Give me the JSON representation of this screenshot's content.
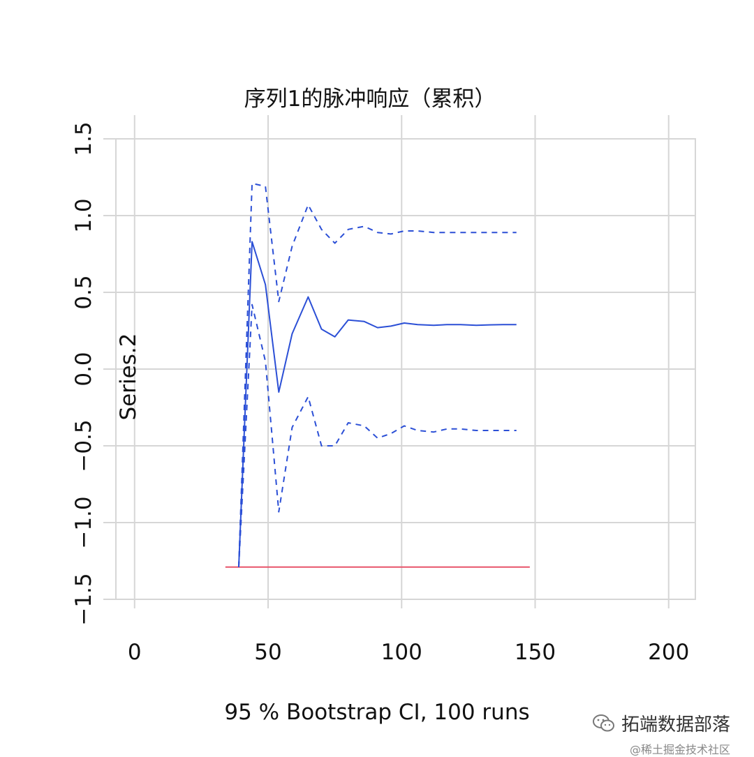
{
  "chart_data": {
    "type": "line",
    "title": "序列1的脉冲响应（累积）",
    "xlabel": "95 % Bootstrap CI,  100 runs",
    "ylabel": "Series.2",
    "xlim": [
      -7,
      210
    ],
    "ylim": [
      -1.5,
      1.5
    ],
    "xticks": [
      0,
      50,
      100,
      150,
      200
    ],
    "yticks": [
      -1.5,
      -1.0,
      -0.5,
      0.0,
      0.5,
      1.0,
      1.5
    ],
    "grid": true,
    "x": [
      39,
      44,
      49,
      54,
      59,
      65,
      70,
      75,
      80,
      86,
      91,
      96,
      101,
      106,
      112,
      117,
      122,
      128,
      133,
      138,
      143
    ],
    "series": [
      {
        "name": "",
        "style": "solid",
        "color": "#2b4fd6",
        "values": [
          -1.29,
          0.83,
          0.55,
          -0.15,
          0.23,
          0.47,
          0.26,
          0.21,
          0.32,
          0.31,
          0.27,
          0.28,
          0.3,
          0.29,
          0.285,
          0.29,
          0.29,
          0.285,
          0.288,
          0.29,
          0.29
        ]
      },
      {
        "name": "",
        "style": "dashed",
        "color": "#2b4fd6",
        "values": [
          -1.29,
          1.21,
          1.19,
          0.44,
          0.8,
          1.07,
          0.91,
          0.82,
          0.91,
          0.93,
          0.89,
          0.88,
          0.9,
          0.9,
          0.89,
          0.89,
          0.89,
          0.89,
          0.89,
          0.89,
          0.89
        ]
      },
      {
        "name": "",
        "style": "dashed",
        "color": "#2b4fd6",
        "values": [
          -1.29,
          0.42,
          0.05,
          -0.93,
          -0.38,
          -0.18,
          -0.5,
          -0.5,
          -0.35,
          -0.37,
          -0.45,
          -0.42,
          -0.37,
          -0.4,
          -0.41,
          -0.39,
          -0.39,
          -0.4,
          -0.4,
          -0.4,
          -0.4
        ]
      }
    ],
    "reference_line": {
      "y": -1.29,
      "x_start": 34,
      "x_end": 148,
      "color": "#e8546a"
    }
  },
  "watermark": {
    "line1": "拓端数据部落",
    "line2": "@稀土掘金技术社区",
    "icon": "wechat-icon"
  }
}
